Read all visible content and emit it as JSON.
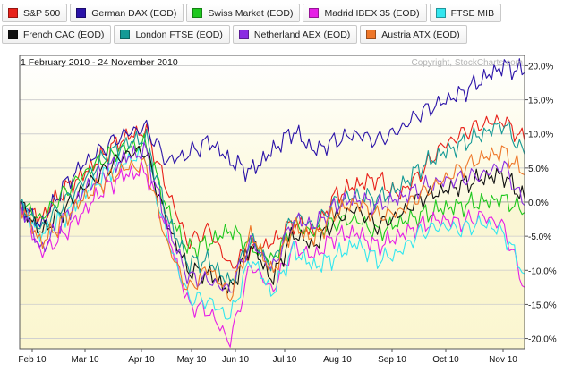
{
  "legend": {
    "row1": [
      {
        "label": "S&P 500",
        "color": "#e8211a"
      },
      {
        "label": "German DAX (EOD)",
        "color": "#2a12a8"
      },
      {
        "label": "Swiss Market (EOD)",
        "color": "#1ec81e"
      },
      {
        "label": "Madrid IBEX 35 (EOD)",
        "color": "#e61ee6"
      },
      {
        "label": "FTSE MIB",
        "color": "#33e6ef"
      }
    ],
    "row2": [
      {
        "label": "French CAC (EOD)",
        "color": "#111111"
      },
      {
        "label": "London FTSE (EOD)",
        "color": "#159a96"
      },
      {
        "label": "Netherland AEX (EOD)",
        "color": "#8a2be2"
      },
      {
        "label": "Austria ATX (EOD)",
        "color": "#ee7628"
      }
    ]
  },
  "chart_data": {
    "type": "line",
    "title": "1 February 2010 - 24 November 2010",
    "watermark": "Copyright, StockCharts.com",
    "x_labels": [
      "Feb 10",
      "Mar 10",
      "Apr 10",
      "May 10",
      "Jun 10",
      "Jul 10",
      "Aug 10",
      "Sep 10",
      "Oct 10",
      "Nov 10"
    ],
    "y_ticks": [
      20,
      15,
      10,
      5,
      0,
      -5,
      -10,
      -15,
      -20
    ],
    "y_tick_labels": [
      "20.0%",
      "15.0%",
      "10.0%",
      "5.0%",
      "0.0%",
      "-5.0%",
      "-10.0%",
      "-15.0%",
      "-20.0%"
    ],
    "ylim": [
      -21.5,
      21.5
    ],
    "grid": true,
    "legend_position": "top",
    "series": [
      {
        "name": "S&P 500",
        "color": "#e8211a",
        "values": [
          0.0,
          -2.5,
          1.5,
          4.0,
          7.0,
          9.5,
          10.5,
          2.0,
          -6.0,
          -4.0,
          -9.5,
          -7.0,
          -6.0,
          -3.0,
          -4.5,
          1.0,
          2.5,
          3.5,
          1.0,
          4.0,
          8.0,
          10.0,
          11.5,
          12.0,
          9.0
        ]
      },
      {
        "name": "German DAX (EOD)",
        "color": "#2a12a8",
        "values": [
          0.0,
          -3.5,
          2.0,
          5.5,
          8.0,
          10.0,
          11.0,
          6.0,
          7.0,
          9.0,
          6.0,
          4.5,
          7.5,
          10.5,
          7.5,
          9.0,
          10.0,
          9.0,
          10.5,
          13.0,
          14.5,
          16.0,
          18.0,
          20.0,
          19.0
        ]
      },
      {
        "name": "Swiss Market (EOD)",
        "color": "#1ec81e",
        "values": [
          0.0,
          -2.5,
          1.0,
          4.0,
          6.5,
          8.0,
          8.5,
          -1.0,
          -7.0,
          -6.0,
          -4.0,
          -6.5,
          -8.5,
          -3.5,
          -4.5,
          -3.0,
          -2.5,
          -4.5,
          -3.0,
          -2.0,
          -1.0,
          -0.5,
          0.0,
          0.5,
          -1.5
        ]
      },
      {
        "name": "Madrid IBEX 35 (EOD)",
        "color": "#e61ee6",
        "values": [
          0.0,
          -7.5,
          -5.0,
          -1.5,
          2.0,
          4.0,
          4.5,
          -4.0,
          -15.0,
          -16.0,
          -20.5,
          -9.0,
          -13.0,
          -6.5,
          -8.0,
          -5.0,
          -4.5,
          -6.5,
          -5.0,
          -3.5,
          -2.5,
          -3.0,
          -2.0,
          -3.5,
          -12.5
        ]
      },
      {
        "name": "FTSE MIB",
        "color": "#33e6ef",
        "values": [
          0.0,
          -5.0,
          -2.5,
          1.0,
          4.0,
          6.0,
          7.0,
          -5.0,
          -14.0,
          -14.5,
          -17.0,
          -8.0,
          -13.5,
          -7.0,
          -9.5,
          -8.0,
          -6.0,
          -8.5,
          -7.5,
          -4.5,
          -3.5,
          -4.0,
          -3.0,
          -4.5,
          -10.5
        ]
      },
      {
        "name": "French CAC (EOD)",
        "color": "#111111",
        "values": [
          0.0,
          -4.5,
          -1.5,
          2.0,
          4.5,
          7.0,
          7.5,
          -3.0,
          -10.0,
          -10.5,
          -13.0,
          -6.0,
          -11.5,
          -4.5,
          -6.5,
          -2.5,
          -1.0,
          -3.5,
          -2.0,
          0.5,
          1.5,
          2.5,
          3.5,
          4.0,
          0.5
        ]
      },
      {
        "name": "London FTSE (EOD)",
        "color": "#159a96",
        "values": [
          0.0,
          -4.0,
          -0.5,
          3.0,
          6.5,
          8.5,
          9.5,
          -2.0,
          -9.0,
          -8.5,
          -12.0,
          -5.5,
          -9.5,
          -2.0,
          -3.5,
          0.0,
          1.0,
          0.5,
          2.0,
          5.0,
          7.0,
          8.5,
          10.0,
          11.5,
          7.0
        ]
      },
      {
        "name": "Netherland AEX (EOD)",
        "color": "#8a2be2",
        "values": [
          0.0,
          -7.0,
          -3.0,
          1.5,
          4.5,
          6.5,
          7.5,
          -3.5,
          -11.0,
          -11.5,
          -13.0,
          -5.5,
          -10.0,
          -2.5,
          -3.5,
          -0.5,
          0.5,
          -0.5,
          0.5,
          2.0,
          3.0,
          3.5,
          4.0,
          5.5,
          -0.5
        ]
      },
      {
        "name": "Austria ATX (EOD)",
        "color": "#ee7628",
        "values": [
          0.0,
          -6.0,
          -3.0,
          0.5,
          3.0,
          5.0,
          5.5,
          -6.0,
          -13.0,
          -9.5,
          -14.0,
          -4.5,
          -10.5,
          -3.5,
          -5.5,
          -1.5,
          0.0,
          -2.0,
          -1.5,
          1.0,
          3.0,
          5.0,
          6.5,
          7.5,
          4.0
        ]
      }
    ]
  }
}
